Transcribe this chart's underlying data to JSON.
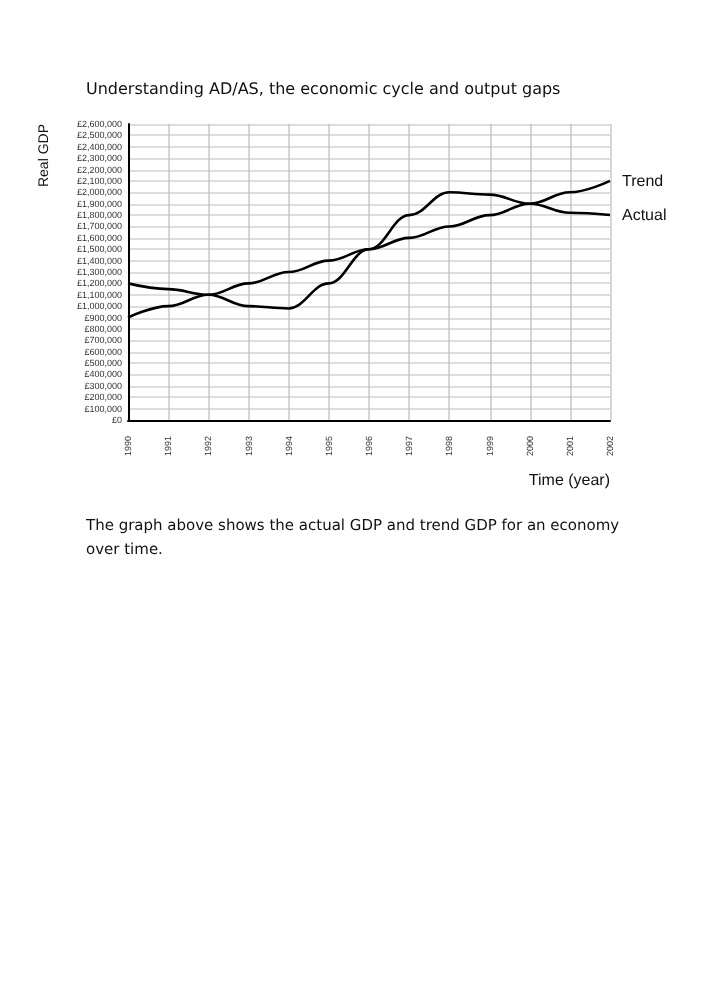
{
  "chart_data": {
    "type": "line",
    "title": "Understanding AD/AS, the economic cycle and output gaps",
    "xlabel": "Time (year)",
    "ylabel": "Real GDP",
    "annotations": [
      "The graph above shows the actual GDP and trend GDP for an economy over time."
    ],
    "x": [
      1990,
      1991,
      1992,
      1993,
      1994,
      1995,
      1996,
      1997,
      1998,
      1999,
      2000,
      2001,
      2002
    ],
    "series": [
      {
        "name": "Trend",
        "color": "#000000",
        "values": [
          900000,
          1000000,
          1100000,
          1200000,
          1300000,
          1400000,
          1500000,
          1600000,
          1700000,
          1800000,
          1900000,
          2000000,
          2100000
        ]
      },
      {
        "name": "Actual",
        "color": "#000000",
        "values": [
          1200000,
          1150000,
          1100000,
          1000000,
          980000,
          1200000,
          1500000,
          1800000,
          2000000,
          1980000,
          1900000,
          1820000,
          1800000
        ]
      }
    ],
    "xlim": [
      1990,
      2002
    ],
    "xticks": [
      1990,
      1991,
      1992,
      1993,
      1994,
      1995,
      1996,
      1997,
      1998,
      1999,
      2000,
      2001,
      2002
    ],
    "ylim": [
      0,
      2600000
    ],
    "yticks": [
      {
        "value": 0,
        "label": "£0"
      },
      {
        "value": 100000,
        "label": "£100,000"
      },
      {
        "value": 200000,
        "label": "£200,000"
      },
      {
        "value": 300000,
        "label": "£300,000"
      },
      {
        "value": 400000,
        "label": "£400,000"
      },
      {
        "value": 500000,
        "label": "£500,000"
      },
      {
        "value": 600000,
        "label": "£600,000"
      },
      {
        "value": 700000,
        "label": "£700,000"
      },
      {
        "value": 800000,
        "label": "£800,000"
      },
      {
        "value": 900000,
        "label": "£900,000"
      },
      {
        "value": 1000000,
        "label": "£1,000,000"
      },
      {
        "value": 1100000,
        "label": "£1,100,000"
      },
      {
        "value": 1200000,
        "label": "£1,200,000"
      },
      {
        "value": 1300000,
        "label": "£1,300,000"
      },
      {
        "value": 1400000,
        "label": "£1,400,000"
      },
      {
        "value": 1500000,
        "label": "£1,500,000"
      },
      {
        "value": 1600000,
        "label": "£1,600,000"
      },
      {
        "value": 1700000,
        "label": "£1,700,000"
      },
      {
        "value": 1800000,
        "label": "£1,800,000"
      },
      {
        "value": 1900000,
        "label": "£1,900,000"
      },
      {
        "value": 2000000,
        "label": "£2,000,000"
      },
      {
        "value": 2100000,
        "label": "£2,100,000"
      },
      {
        "value": 2200000,
        "label": "£2,200,000"
      },
      {
        "value": 2300000,
        "label": "£2,300,000"
      },
      {
        "value": 2400000,
        "label": "£2,400,000"
      },
      {
        "value": 2500000,
        "label": "£2,500,000"
      },
      {
        "value": 2600000,
        "label": "£2,600,000"
      }
    ],
    "grid": true,
    "marker": "none",
    "line_style": "solid"
  }
}
